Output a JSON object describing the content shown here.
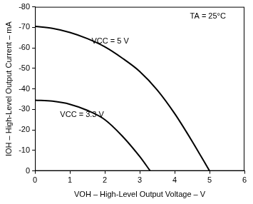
{
  "chart_data": {
    "type": "line",
    "x_label": "VOH – High-Level Output Voltage – V",
    "y_label": "IOH – High-Level Output Current – mA",
    "annotations": [
      "TA = 25°C"
    ],
    "series": [
      {
        "name": "VCC = 5 V",
        "color": "#000000",
        "x": [
          0,
          0.5,
          1,
          1.5,
          2,
          2.5,
          3,
          3.5,
          4,
          4.5,
          5
        ],
        "values": [
          -70.5,
          -69.5,
          -67.5,
          -64.5,
          -60.5,
          -55,
          -48.5,
          -39.5,
          -28,
          -14.5,
          0
        ]
      },
      {
        "name": "VCC = 3.3 V",
        "color": "#000000",
        "x": [
          0,
          0.5,
          1,
          1.5,
          2,
          2.5,
          3,
          3.3
        ],
        "values": [
          -34.5,
          -34,
          -32.5,
          -29.5,
          -25,
          -17,
          -7,
          0
        ]
      }
    ],
    "xlim": [
      0,
      6
    ],
    "xticks": [
      0,
      1,
      2,
      3,
      4,
      5,
      6
    ],
    "ylim": [
      0,
      -80
    ],
    "yticks": [
      0,
      -10,
      -20,
      -30,
      -40,
      -50,
      -60,
      -70,
      -80
    ],
    "grid": false
  }
}
